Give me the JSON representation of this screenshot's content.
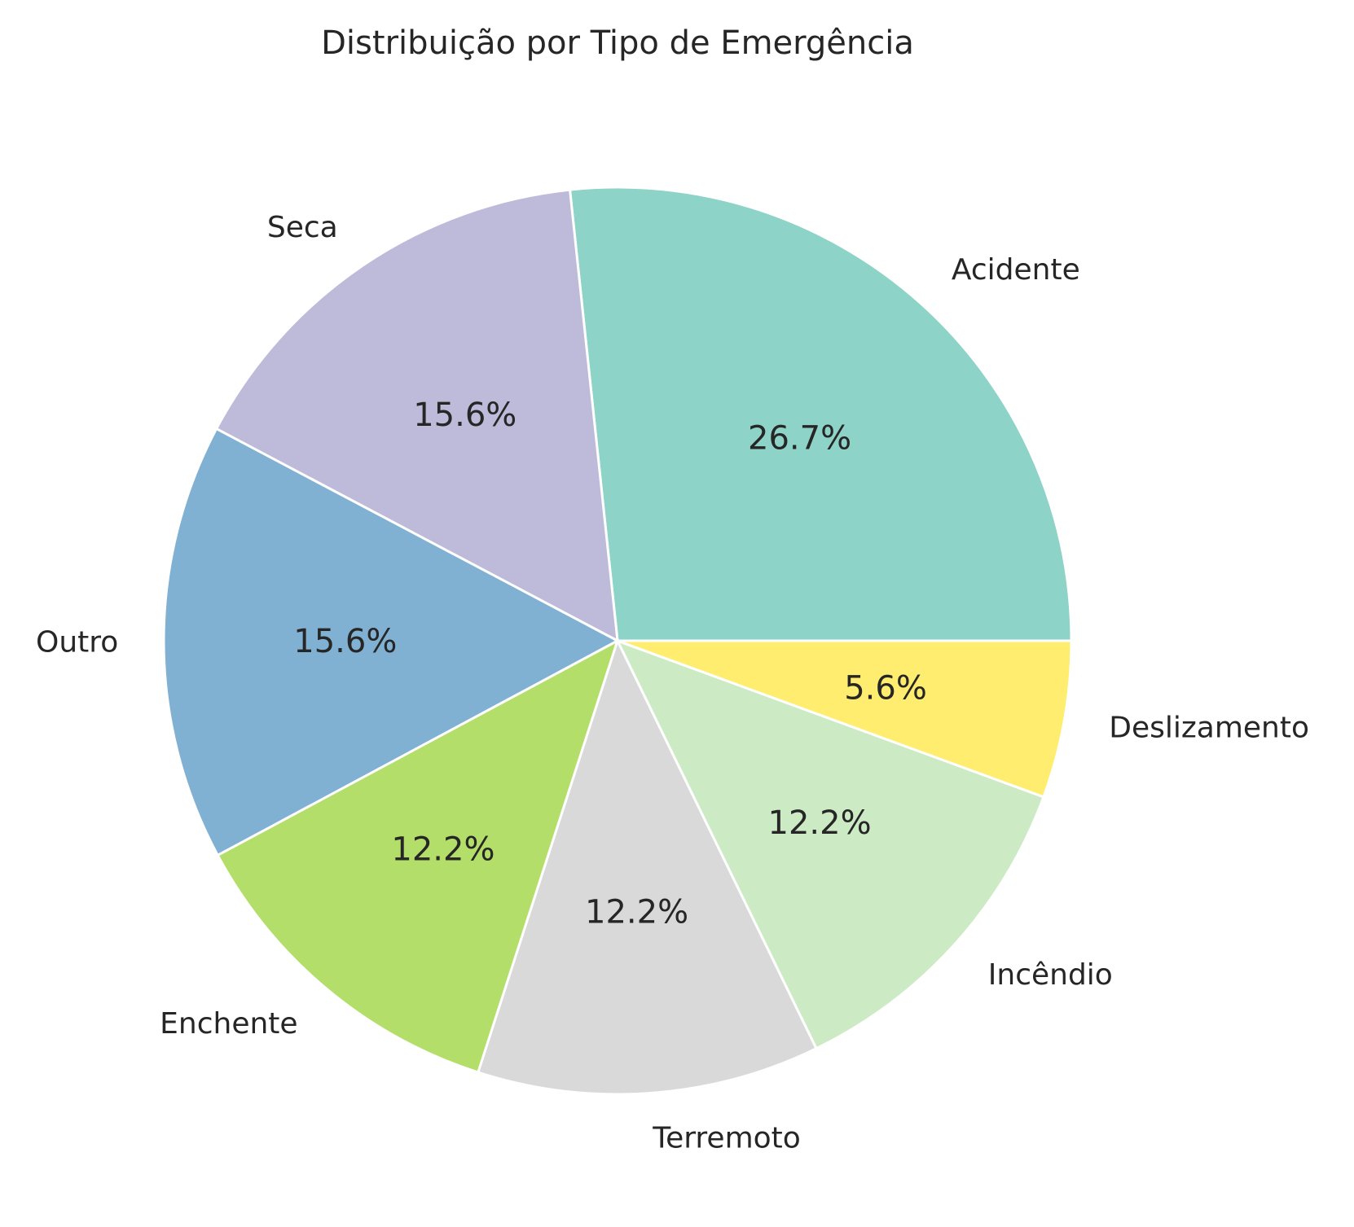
{
  "chart_data": {
    "type": "pie",
    "title": "Distribuição por Tipo de Emergência",
    "start_angle_deg": 0,
    "direction": "counterclockwise",
    "edge_color": "#ffffff",
    "slices": [
      {
        "label": "Acidente",
        "value": 26.7,
        "pct_label": "26.7%",
        "color": "#8dd3c7"
      },
      {
        "label": "Seca",
        "value": 15.6,
        "pct_label": "15.6%",
        "color": "#bebada"
      },
      {
        "label": "Outro",
        "value": 15.6,
        "pct_label": "15.6%",
        "color": "#80b1d3"
      },
      {
        "label": "Enchente",
        "value": 12.2,
        "pct_label": "12.2%",
        "color": "#b3de69"
      },
      {
        "label": "Terremoto",
        "value": 12.2,
        "pct_label": "12.2%",
        "color": "#d9d9d9"
      },
      {
        "label": "Incêndio",
        "value": 12.2,
        "pct_label": "12.2%",
        "color": "#ccebc5"
      },
      {
        "label": "Deslizamento",
        "value": 5.6,
        "pct_label": "5.6%",
        "color": "#ffed6f"
      }
    ]
  }
}
